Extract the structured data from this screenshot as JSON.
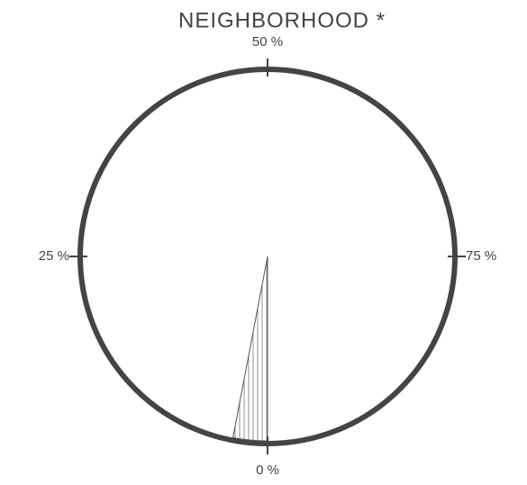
{
  "chart_data": {
    "type": "gauge",
    "title": "NEIGHBORHOOD *",
    "value": 3,
    "color": "#555555",
    "ticks": [
      {
        "value": 0,
        "label": "0 %"
      },
      {
        "value": 25,
        "label": "25 %"
      },
      {
        "value": 50,
        "label": "50 %"
      },
      {
        "value": 75,
        "label": "75 %"
      }
    ],
    "range": [
      0,
      100
    ]
  }
}
